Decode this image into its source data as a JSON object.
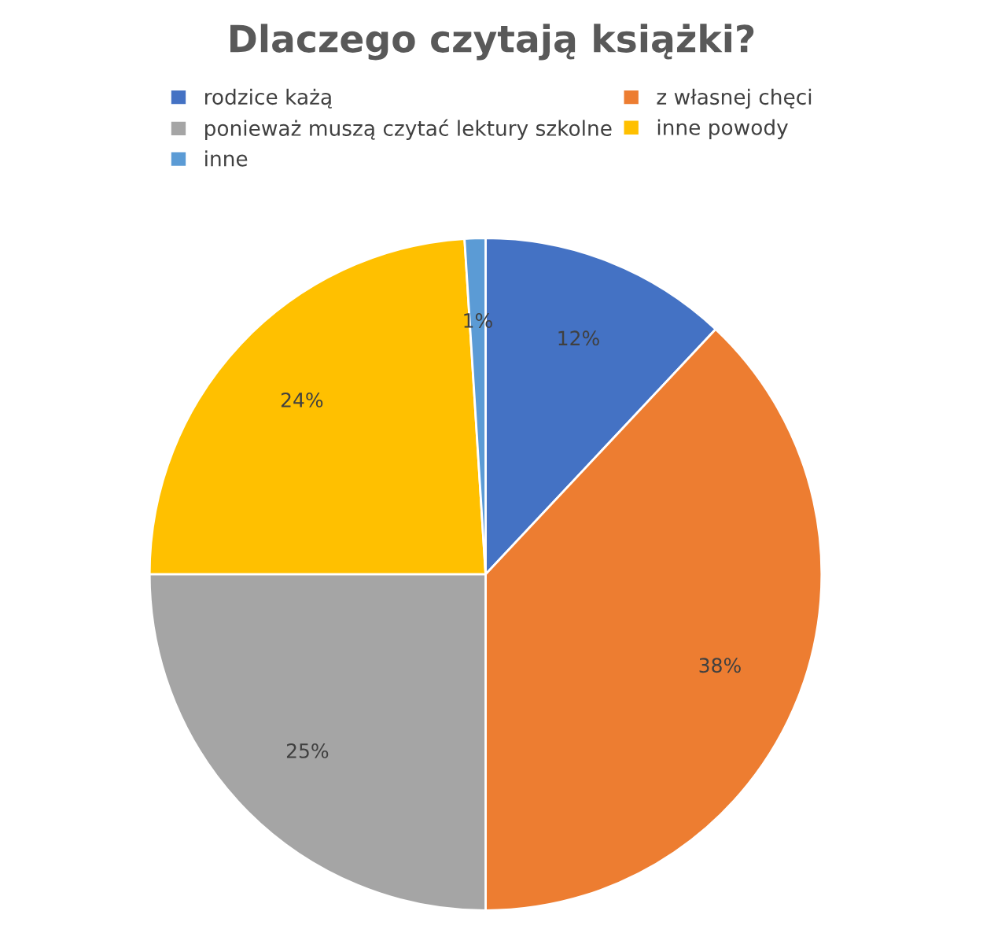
{
  "chart_data": {
    "type": "pie",
    "title": "Dlaczego czytają książki?",
    "categories": [
      "rodzice każą",
      "z własnej chęci",
      "ponieważ muszą czytać lektury szkolne",
      "inne powody",
      "inne"
    ],
    "values": [
      12,
      38,
      25,
      24,
      1
    ],
    "colors": [
      "#4472c4",
      "#ed7d31",
      "#a5a5a5",
      "#ffc000",
      "#5b9bd5"
    ],
    "value_labels": [
      "12%",
      "38%",
      "25%",
      "24%",
      "1%"
    ],
    "legend": "top"
  }
}
